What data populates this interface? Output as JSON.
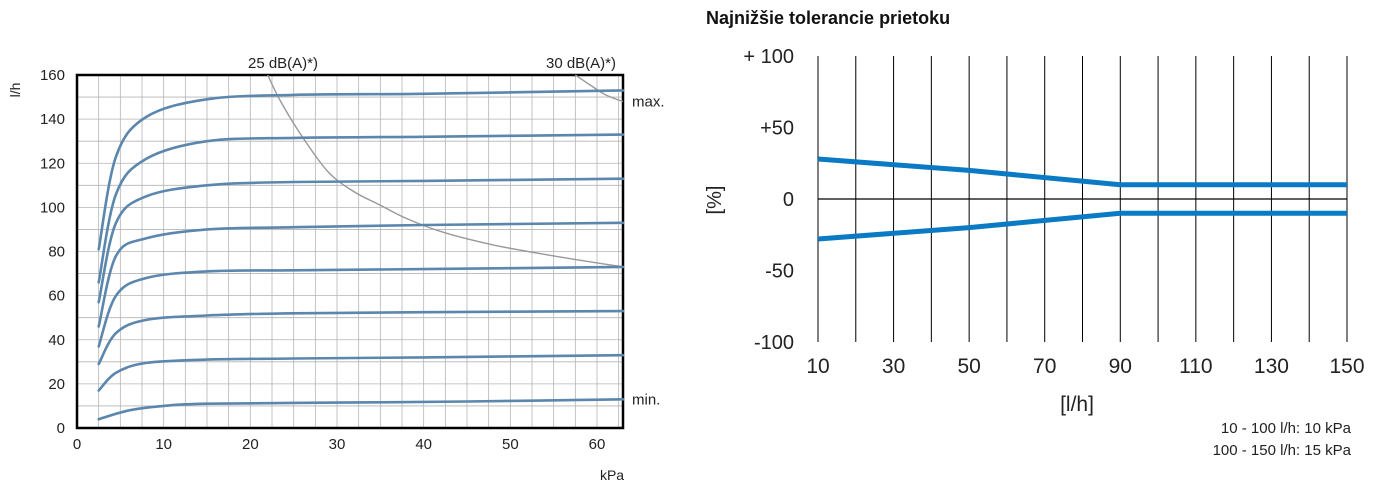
{
  "chart_data": [
    {
      "type": "line",
      "ylabel": "l/h",
      "xlabel": "kPa",
      "xlim": [
        0,
        63
      ],
      "ylim": [
        0,
        160
      ],
      "xticks": [
        0,
        10,
        20,
        30,
        40,
        50,
        60
      ],
      "yticks": [
        0,
        20,
        40,
        60,
        80,
        100,
        120,
        140,
        160
      ],
      "grid": true,
      "annotations": {
        "max": "max.",
        "min": "min.",
        "iso25": "25 dB(A)*)",
        "iso30": "30 dB(A)*)"
      },
      "series_color": "#5b86ad",
      "iso_color": "#999999",
      "series": [
        {
          "values": [
            [
              2.5,
              81
            ],
            [
              4.5,
              123
            ],
            [
              8,
              141
            ],
            [
              15,
              149
            ],
            [
              25,
              151
            ],
            [
              40,
              151.5
            ],
            [
              63,
              153
            ]
          ]
        },
        {
          "values": [
            [
              2.5,
              66
            ],
            [
              4.5,
              106
            ],
            [
              8,
              122
            ],
            [
              15,
              130
            ],
            [
              25,
              131.5
            ],
            [
              40,
              132
            ],
            [
              63,
              133
            ]
          ]
        },
        {
          "values": [
            [
              2.5,
              57
            ],
            [
              4.5,
              93
            ],
            [
              8,
              105
            ],
            [
              15,
              110
            ],
            [
              25,
              111.5
            ],
            [
              40,
              112
            ],
            [
              63,
              113
            ]
          ]
        },
        {
          "values": [
            [
              2.5,
              46
            ],
            [
              4.5,
              78
            ],
            [
              8,
              86
            ],
            [
              15,
              90
            ],
            [
              25,
              91
            ],
            [
              40,
              92
            ],
            [
              63,
              93
            ]
          ]
        },
        {
          "values": [
            [
              2.5,
              37
            ],
            [
              4.5,
              60
            ],
            [
              8,
              68
            ],
            [
              15,
              71
            ],
            [
              25,
              71.5
            ],
            [
              40,
              72
            ],
            [
              63,
              73
            ]
          ]
        },
        {
          "values": [
            [
              2.5,
              29
            ],
            [
              4.5,
              43
            ],
            [
              8,
              49
            ],
            [
              15,
              51
            ],
            [
              25,
              52
            ],
            [
              40,
              52.5
            ],
            [
              63,
              53
            ]
          ]
        },
        {
          "values": [
            [
              2.5,
              17
            ],
            [
              4.5,
              25
            ],
            [
              8,
              29.5
            ],
            [
              15,
              31
            ],
            [
              25,
              31.5
            ],
            [
              40,
              32
            ],
            [
              63,
              33
            ]
          ]
        },
        {
          "values": [
            [
              2.5,
              4
            ],
            [
              6,
              8
            ],
            [
              10,
              10
            ],
            [
              15,
              11
            ],
            [
              30,
              11.5
            ],
            [
              45,
              12
            ],
            [
              63,
              13
            ]
          ]
        }
      ],
      "iso_lines": [
        {
          "values": [
            [
              22,
              160
            ],
            [
              23.5,
              148
            ],
            [
              26,
              132
            ],
            [
              29,
              116
            ],
            [
              32,
              107
            ],
            [
              35,
              101
            ],
            [
              38,
              95
            ],
            [
              42,
              89
            ],
            [
              48,
              83
            ],
            [
              55,
              78
            ],
            [
              63,
              73
            ]
          ]
        },
        {
          "values": [
            [
              57.5,
              160
            ],
            [
              59,
              156
            ],
            [
              61,
              151
            ],
            [
              63,
              148
            ]
          ]
        }
      ]
    },
    {
      "type": "line",
      "title": "Najnižšie tolerancie prietoku",
      "xlabel": "[l/h]",
      "ylabel": "[%]",
      "xlim": [
        10,
        150
      ],
      "ylim": [
        -100,
        100
      ],
      "xticks": [
        10,
        30,
        50,
        70,
        90,
        110,
        130,
        150
      ],
      "ytick_labels": [
        {
          "value": 100,
          "label": "+ 100"
        },
        {
          "value": 50,
          "label": "+50"
        },
        {
          "value": 0,
          "label": "0"
        },
        {
          "value": -50,
          "label": "-50"
        },
        {
          "value": -100,
          "label": "-100"
        }
      ],
      "grid": true,
      "series_color": "#0a7ac4",
      "series": [
        {
          "values": [
            [
              10,
              28
            ],
            [
              50,
              20
            ],
            [
              90,
              10
            ],
            [
              150,
              10
            ]
          ]
        },
        {
          "values": [
            [
              10,
              -28
            ],
            [
              50,
              -20
            ],
            [
              90,
              -10
            ],
            [
              150,
              -10
            ]
          ]
        }
      ],
      "notes": [
        "10 - 100 l/h: 10 kPa",
        "100 - 150 l/h: 15 kPa"
      ]
    }
  ]
}
